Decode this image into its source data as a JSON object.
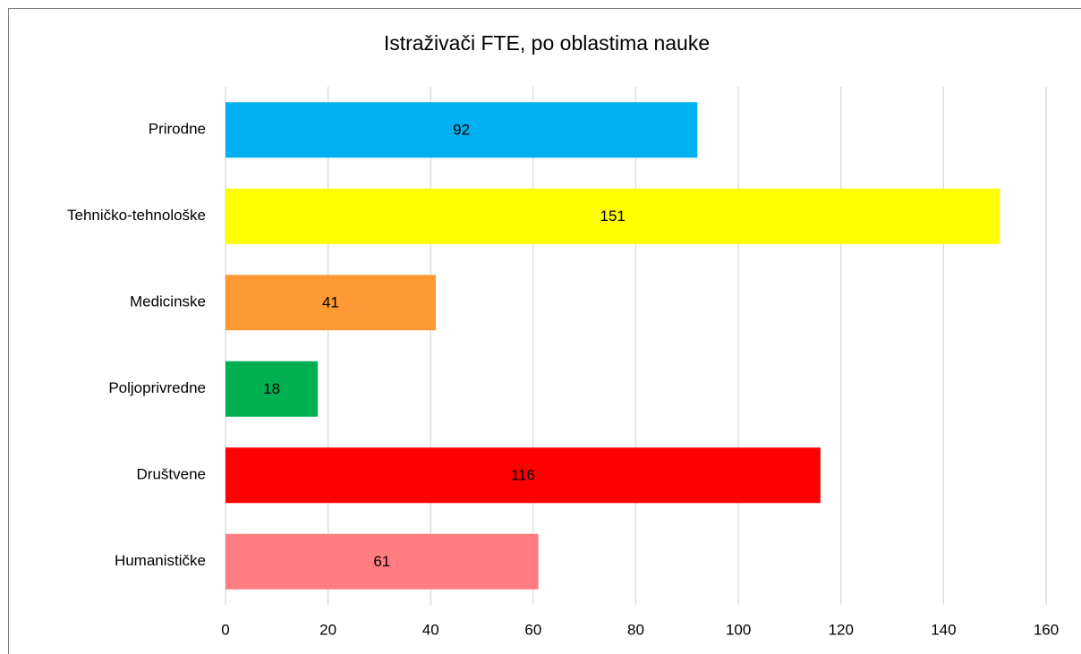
{
  "chart_data": {
    "type": "bar",
    "orientation": "horizontal",
    "title": "Istraživači FTE, po oblastima nauke",
    "categories": [
      "Prirodne",
      "Tehničko-tehnološke",
      "Medicinske",
      "Poljoprivredne",
      "Društvene",
      "Humanističke"
    ],
    "values": [
      92,
      151,
      41,
      18,
      116,
      61
    ],
    "colors": [
      "#00b0f0",
      "#ffff00",
      "#ff9933",
      "#00b050",
      "#ff0000",
      "#ff7c80"
    ],
    "xlim": [
      0,
      160
    ],
    "xticks": [
      0,
      20,
      40,
      60,
      80,
      100,
      120,
      140,
      160
    ],
    "grid": true
  }
}
